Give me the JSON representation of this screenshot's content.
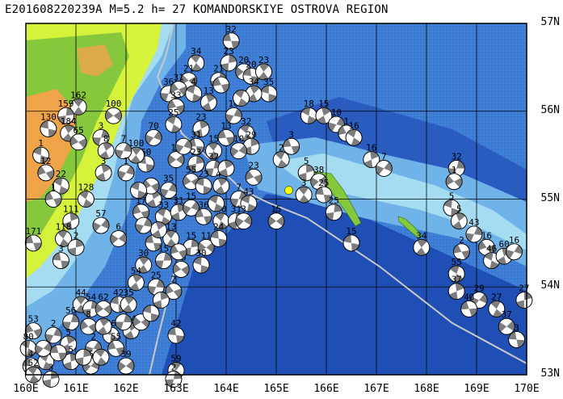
{
  "title": "E201608220239A M=5.2 h= 27 KOMANDORSKIYE OSTROVA REGION",
  "map": {
    "lon_range": [
      160,
      170
    ],
    "lat_range": [
      53,
      57
    ],
    "grid": true,
    "lon_labels": [
      "160E",
      "161E",
      "162E",
      "163E",
      "164E",
      "165E",
      "166E",
      "167E",
      "168E",
      "169E",
      "170E"
    ],
    "lat_labels": [
      "57N",
      "56N",
      "55N",
      "54N",
      "53N"
    ],
    "colors": {
      "deep_ocean": "#1f4fb4",
      "ocean": "#3f7fd6",
      "shelf": "#6fb3e8",
      "shallow": "#a6dcf2",
      "lowland": "#d6f23a",
      "upland": "#86c83c",
      "highland": "#f0a44a",
      "plate_boundary": "#c8c8c8",
      "event_star": "#ffff00"
    },
    "event": {
      "lon": 165.25,
      "lat": 55.1
    },
    "mechanisms": [
      {
        "lon": 164.1,
        "lat": 56.8,
        "label": "32"
      },
      {
        "lon": 163.4,
        "lat": 56.55,
        "label": "34"
      },
      {
        "lon": 164.05,
        "lat": 56.55,
        "label": "23"
      },
      {
        "lon": 164.35,
        "lat": 56.45,
        "label": "20"
      },
      {
        "lon": 164.5,
        "lat": 56.4,
        "label": "20"
      },
      {
        "lon": 164.75,
        "lat": 56.45,
        "label": "23"
      },
      {
        "lon": 163.85,
        "lat": 56.35,
        "label": "21"
      },
      {
        "lon": 163.25,
        "lat": 56.35,
        "label": "21"
      },
      {
        "lon": 164.85,
        "lat": 56.2,
        "label": "35"
      },
      {
        "lon": 164.55,
        "lat": 56.2,
        "label": "34"
      },
      {
        "lon": 162.85,
        "lat": 56.2,
        "label": "36"
      },
      {
        "lon": 163.05,
        "lat": 56.25,
        "label": "31"
      },
      {
        "lon": 163.35,
        "lat": 56.2,
        "label": "4"
      },
      {
        "lon": 163.65,
        "lat": 56.1,
        "label": "13"
      },
      {
        "lon": 164.15,
        "lat": 55.95,
        "label": "10"
      },
      {
        "lon": 163.0,
        "lat": 56.05,
        "label": "33"
      },
      {
        "lon": 162.95,
        "lat": 55.85,
        "label": "25"
      },
      {
        "lon": 163.5,
        "lat": 55.8,
        "label": "23"
      },
      {
        "lon": 162.55,
        "lat": 55.7,
        "label": "70"
      },
      {
        "lon": 164.0,
        "lat": 55.7,
        "label": "13"
      },
      {
        "lon": 164.4,
        "lat": 55.75,
        "label": "32"
      },
      {
        "lon": 164.5,
        "lat": 55.6,
        "label": "29"
      },
      {
        "lon": 164.25,
        "lat": 55.55,
        "label": "10"
      },
      {
        "lon": 163.4,
        "lat": 55.6,
        "label": "31"
      },
      {
        "lon": 163.75,
        "lat": 55.55,
        "label": "15"
      },
      {
        "lon": 163.4,
        "lat": 55.4,
        "label": "23"
      },
      {
        "lon": 163.0,
        "lat": 55.45,
        "label": "15"
      },
      {
        "lon": 162.4,
        "lat": 55.4,
        "label": "60"
      },
      {
        "lon": 162.2,
        "lat": 55.5,
        "label": "100"
      },
      {
        "lon": 163.75,
        "lat": 55.35,
        "label": "32"
      },
      {
        "lon": 163.3,
        "lat": 55.2,
        "label": "55"
      },
      {
        "lon": 163.55,
        "lat": 55.15,
        "label": "23"
      },
      {
        "lon": 163.9,
        "lat": 55.15,
        "label": "44"
      },
      {
        "lon": 164.25,
        "lat": 55.0,
        "label": "7"
      },
      {
        "lon": 164.55,
        "lat": 55.25,
        "label": "23"
      },
      {
        "lon": 164.45,
        "lat": 54.95,
        "label": "43"
      },
      {
        "lon": 162.55,
        "lat": 55.0,
        "label": "40"
      },
      {
        "lon": 162.85,
        "lat": 55.1,
        "label": "35"
      },
      {
        "lon": 162.3,
        "lat": 54.85,
        "label": "17"
      },
      {
        "lon": 162.75,
        "lat": 54.8,
        "label": "33"
      },
      {
        "lon": 163.05,
        "lat": 54.85,
        "label": "31"
      },
      {
        "lon": 163.3,
        "lat": 54.9,
        "label": "15"
      },
      {
        "lon": 163.55,
        "lat": 54.8,
        "label": "36"
      },
      {
        "lon": 163.9,
        "lat": 54.75,
        "label": "40"
      },
      {
        "lon": 164.2,
        "lat": 54.75,
        "label": "31"
      },
      {
        "lon": 164.35,
        "lat": 54.75,
        "label": "3"
      },
      {
        "lon": 162.55,
        "lat": 54.5,
        "label": "5"
      },
      {
        "lon": 162.9,
        "lat": 54.55,
        "label": "13"
      },
      {
        "lon": 163.3,
        "lat": 54.45,
        "label": "15"
      },
      {
        "lon": 163.6,
        "lat": 54.45,
        "label": "11"
      },
      {
        "lon": 163.85,
        "lat": 54.55,
        "label": "24"
      },
      {
        "lon": 162.35,
        "lat": 54.25,
        "label": "30"
      },
      {
        "lon": 162.75,
        "lat": 54.3,
        "label": "15"
      },
      {
        "lon": 163.1,
        "lat": 54.2,
        "label": "35"
      },
      {
        "lon": 163.5,
        "lat": 54.25,
        "label": "30"
      },
      {
        "lon": 162.2,
        "lat": 54.05,
        "label": "54"
      },
      {
        "lon": 162.6,
        "lat": 54.0,
        "label": "25"
      },
      {
        "lon": 162.95,
        "lat": 53.95,
        "label": "2"
      },
      {
        "lon": 165.65,
        "lat": 55.95,
        "label": "18"
      },
      {
        "lon": 165.95,
        "lat": 55.95,
        "label": "15"
      },
      {
        "lon": 166.2,
        "lat": 55.85,
        "label": "10"
      },
      {
        "lon": 166.4,
        "lat": 55.75,
        "label": "1"
      },
      {
        "lon": 166.55,
        "lat": 55.7,
        "label": "16"
      },
      {
        "lon": 166.9,
        "lat": 55.45,
        "label": "16"
      },
      {
        "lon": 167.15,
        "lat": 55.35,
        "label": "7"
      },
      {
        "lon": 165.3,
        "lat": 55.6,
        "label": "3"
      },
      {
        "lon": 165.1,
        "lat": 55.45,
        "label": "2"
      },
      {
        "lon": 165.6,
        "lat": 55.3,
        "label": "5"
      },
      {
        "lon": 165.85,
        "lat": 55.2,
        "label": "38"
      },
      {
        "lon": 165.95,
        "lat": 55.05,
        "label": "25"
      },
      {
        "lon": 165.55,
        "lat": 55.05,
        "label": "3"
      },
      {
        "lon": 166.15,
        "lat": 54.85,
        "label": "25"
      },
      {
        "lon": 165.0,
        "lat": 54.75,
        "label": "15"
      },
      {
        "lon": 166.5,
        "lat": 54.5,
        "label": "15"
      },
      {
        "lon": 167.9,
        "lat": 54.45,
        "label": "34"
      },
      {
        "lon": 168.6,
        "lat": 55.35,
        "label": "32"
      },
      {
        "lon": 168.55,
        "lat": 55.2,
        "label": "1"
      },
      {
        "lon": 168.5,
        "lat": 54.9,
        "label": "5"
      },
      {
        "lon": 168.65,
        "lat": 54.75,
        "label": "5"
      },
      {
        "lon": 168.95,
        "lat": 54.6,
        "label": "43"
      },
      {
        "lon": 169.2,
        "lat": 54.45,
        "label": "16"
      },
      {
        "lon": 169.3,
        "lat": 54.3,
        "label": "46"
      },
      {
        "lon": 169.55,
        "lat": 54.35,
        "label": "60"
      },
      {
        "lon": 169.75,
        "lat": 54.4,
        "label": "16"
      },
      {
        "lon": 168.7,
        "lat": 54.4,
        "label": "2"
      },
      {
        "lon": 168.6,
        "lat": 54.15,
        "label": "55"
      },
      {
        "lon": 168.6,
        "lat": 53.95,
        "label": "37"
      },
      {
        "lon": 169.05,
        "lat": 53.85,
        "label": "29"
      },
      {
        "lon": 168.85,
        "lat": 53.75,
        "label": "40"
      },
      {
        "lon": 169.4,
        "lat": 53.75,
        "label": "27"
      },
      {
        "lon": 169.95,
        "lat": 53.85,
        "label": "27"
      },
      {
        "lon": 169.6,
        "lat": 53.55,
        "label": "37"
      },
      {
        "lon": 169.8,
        "lat": 53.4,
        "label": "3"
      },
      {
        "lon": 161.05,
        "lat": 56.05,
        "label": "162"
      },
      {
        "lon": 160.8,
        "lat": 55.95,
        "label": "159"
      },
      {
        "lon": 161.75,
        "lat": 55.95,
        "label": "100"
      },
      {
        "lon": 160.45,
        "lat": 55.8,
        "label": "130"
      },
      {
        "lon": 160.85,
        "lat": 55.75,
        "label": "184"
      },
      {
        "lon": 161.5,
        "lat": 55.7,
        "label": "3"
      },
      {
        "lon": 161.05,
        "lat": 55.65,
        "label": "65"
      },
      {
        "lon": 160.3,
        "lat": 55.5,
        "label": "1"
      },
      {
        "lon": 161.6,
        "lat": 55.55,
        "label": "8"
      },
      {
        "lon": 161.95,
        "lat": 55.55,
        "label": "7"
      },
      {
        "lon": 160.4,
        "lat": 55.3,
        "label": "12"
      },
      {
        "lon": 160.7,
        "lat": 55.15,
        "label": "22"
      },
      {
        "lon": 161.55,
        "lat": 55.3,
        "label": "3"
      },
      {
        "lon": 162.0,
        "lat": 55.3,
        "label": "1"
      },
      {
        "lon": 160.55,
        "lat": 55.0,
        "label": "1"
      },
      {
        "lon": 161.2,
        "lat": 55.0,
        "label": "128"
      },
      {
        "lon": 160.9,
        "lat": 54.75,
        "label": "111"
      },
      {
        "lon": 161.5,
        "lat": 54.7,
        "label": "57"
      },
      {
        "lon": 160.15,
        "lat": 54.5,
        "label": "171"
      },
      {
        "lon": 160.75,
        "lat": 54.55,
        "label": "118"
      },
      {
        "lon": 161.0,
        "lat": 54.45,
        "label": "2"
      },
      {
        "lon": 161.85,
        "lat": 54.55,
        "label": "6"
      },
      {
        "lon": 160.7,
        "lat": 54.3,
        "label": "3"
      },
      {
        "lon": 161.1,
        "lat": 53.8,
        "label": "44"
      },
      {
        "lon": 161.3,
        "lat": 53.75,
        "label": "54"
      },
      {
        "lon": 161.55,
        "lat": 53.75,
        "label": "62"
      },
      {
        "lon": 161.85,
        "lat": 53.8,
        "label": "42"
      },
      {
        "lon": 162.05,
        "lat": 53.8,
        "label": "35"
      },
      {
        "lon": 160.9,
        "lat": 53.6,
        "label": "56"
      },
      {
        "lon": 161.25,
        "lat": 53.55,
        "label": "8"
      },
      {
        "lon": 161.7,
        "lat": 53.45,
        "label": "46"
      },
      {
        "lon": 162.1,
        "lat": 53.5,
        "label": "14"
      },
      {
        "lon": 160.55,
        "lat": 53.45,
        "label": "2"
      },
      {
        "lon": 160.15,
        "lat": 53.5,
        "label": "53"
      },
      {
        "lon": 160.05,
        "lat": 53.3,
        "label": "80"
      },
      {
        "lon": 160.85,
        "lat": 53.35,
        "label": "5"
      },
      {
        "lon": 161.35,
        "lat": 53.3,
        "label": "2"
      },
      {
        "lon": 161.8,
        "lat": 53.3,
        "label": "55"
      },
      {
        "lon": 160.4,
        "lat": 53.15,
        "label": "3"
      },
      {
        "lon": 160.9,
        "lat": 53.15,
        "label": "5"
      },
      {
        "lon": 161.3,
        "lat": 53.1,
        "label": "6"
      },
      {
        "lon": 160.1,
        "lat": 53.1,
        "label": "4"
      },
      {
        "lon": 160.15,
        "lat": 53.0,
        "label": "52"
      },
      {
        "lon": 160.5,
        "lat": 52.95,
        "label": "3"
      },
      {
        "lon": 162.0,
        "lat": 53.1,
        "label": "39"
      },
      {
        "lon": 163.0,
        "lat": 53.45,
        "label": "42"
      },
      {
        "lon": 163.0,
        "lat": 53.05,
        "label": "59"
      },
      {
        "lon": 162.95,
        "lat": 52.95,
        "label": "2"
      },
      {
        "lon": 162.3,
        "lat": 53.6,
        "label": ""
      },
      {
        "lon": 162.5,
        "lat": 53.7,
        "label": ""
      },
      {
        "lon": 161.55,
        "lat": 53.55,
        "label": ""
      },
      {
        "lon": 161.95,
        "lat": 53.6,
        "label": ""
      },
      {
        "lon": 162.5,
        "lat": 55.15,
        "label": ""
      },
      {
        "lon": 162.25,
        "lat": 55.1,
        "label": ""
      },
      {
        "lon": 162.65,
        "lat": 54.65,
        "label": ""
      },
      {
        "lon": 162.35,
        "lat": 54.7,
        "label": ""
      },
      {
        "lon": 163.05,
        "lat": 54.4,
        "label": ""
      },
      {
        "lon": 163.8,
        "lat": 54.95,
        "label": ""
      },
      {
        "lon": 164.0,
        "lat": 55.35,
        "label": ""
      },
      {
        "lon": 163.15,
        "lat": 55.6,
        "label": ""
      },
      {
        "lon": 163.9,
        "lat": 56.3,
        "label": ""
      },
      {
        "lon": 164.3,
        "lat": 56.15,
        "label": ""
      },
      {
        "lon": 162.7,
        "lat": 53.85,
        "label": ""
      },
      {
        "lon": 160.35,
        "lat": 53.3,
        "label": ""
      },
      {
        "lon": 160.65,
        "lat": 53.25,
        "label": ""
      },
      {
        "lon": 161.5,
        "lat": 53.2,
        "label": ""
      },
      {
        "lon": 161.15,
        "lat": 53.2,
        "label": ""
      }
    ]
  }
}
